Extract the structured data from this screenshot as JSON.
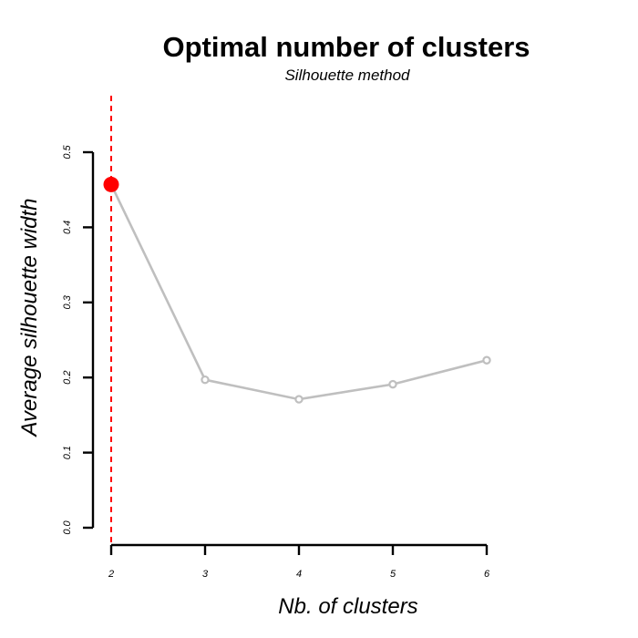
{
  "chart_data": {
    "type": "line",
    "title": "Optimal number of clusters",
    "subtitle": "Silhouette method",
    "xlabel": "Nb. of clusters",
    "ylabel": "Average silhouette width",
    "x": [
      2,
      3,
      4,
      5,
      6
    ],
    "y": [
      0.457,
      0.197,
      0.171,
      0.191,
      0.223
    ],
    "x_ticks": [
      "2",
      "3",
      "4",
      "5",
      "6"
    ],
    "y_ticks": [
      "0.0",
      "0.1",
      "0.2",
      "0.3",
      "0.4",
      "0.5"
    ],
    "xlim": [
      2,
      6
    ],
    "ylim": [
      0,
      0.5
    ],
    "optimal_k": 2,
    "grid": false,
    "colors": {
      "line": "#bfbfbf",
      "optimal_point": "#ff0000",
      "optimal_line": "#ff0000",
      "axis": "#000000"
    }
  }
}
